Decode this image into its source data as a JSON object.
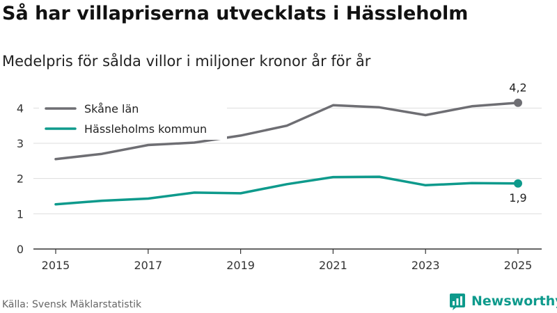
{
  "title": "Så har villapriserna utvecklats i Hässleholm",
  "subtitle": "Medelpris för sålda villor i miljoner kronor år för år",
  "source": "Källa: Svensk Mäklarstatistik",
  "brand": {
    "name": "Newsworthy",
    "icon": "newsworthy-logo-icon",
    "color": "#0e9a8c"
  },
  "chart_data": {
    "type": "line",
    "title": "Så har villapriserna utvecklats i Hässleholm",
    "subtitle": "Medelpris för sålda villor i miljoner kronor år för år",
    "xlabel": "",
    "ylabel": "",
    "x": [
      2015,
      2016,
      2017,
      2018,
      2019,
      2020,
      2021,
      2022,
      2023,
      2024,
      2025
    ],
    "xticks": [
      "2015",
      "2017",
      "2019",
      "2021",
      "2023",
      "2025"
    ],
    "yticks": [
      "0",
      "1",
      "2",
      "3",
      "4"
    ],
    "ylim": [
      0,
      4.5
    ],
    "grid": true,
    "legend_position": "top-left",
    "series": [
      {
        "name": "Skåne län",
        "color": "#6e6e73",
        "values": [
          2.55,
          2.7,
          2.95,
          3.02,
          3.22,
          3.5,
          4.08,
          4.02,
          3.8,
          4.05,
          4.15
        ],
        "end_label": "4,2"
      },
      {
        "name": "Hässleholms kommun",
        "color": "#0e9a8c",
        "values": [
          1.27,
          1.37,
          1.43,
          1.6,
          1.58,
          1.84,
          2.04,
          2.05,
          1.81,
          1.87,
          1.86
        ],
        "end_label": "1,9"
      }
    ]
  }
}
